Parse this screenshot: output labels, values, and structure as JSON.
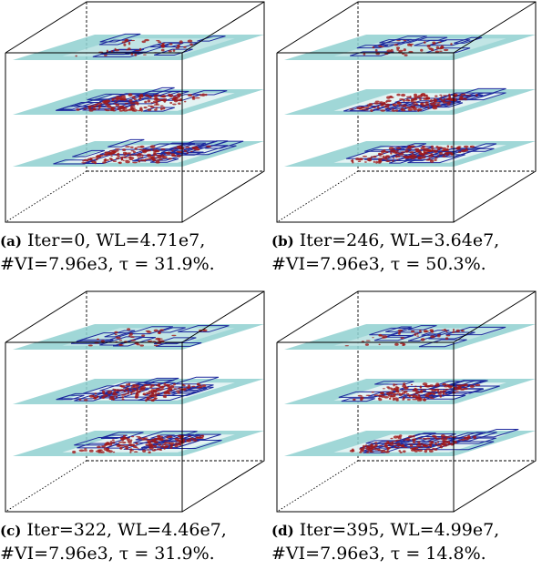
{
  "panels": [
    {
      "id": "a",
      "label": "(a)",
      "line1": "Iter=0,    WL=4.71e7,",
      "line2": "#VI=7.96e3, τ = 31.9%."
    },
    {
      "id": "b",
      "label": "(b)",
      "line1": "Iter=246,  WL=3.64e7,",
      "line2": "#VI=7.96e3, τ = 50.3%."
    },
    {
      "id": "c",
      "label": "(c)",
      "line1": "Iter=322,  WL=4.46e7,",
      "line2": "#VI=7.96e3, τ = 31.9%."
    },
    {
      "id": "d",
      "label": "(d)",
      "line1": "Iter=395,  WL=4.99e7,",
      "line2": "#VI=7.96e3, τ = 14.8%."
    }
  ],
  "colors": {
    "layer": "#8fd0d0",
    "macro": "#1f2a9e",
    "cells": "#a01818",
    "frame": "#000000"
  }
}
